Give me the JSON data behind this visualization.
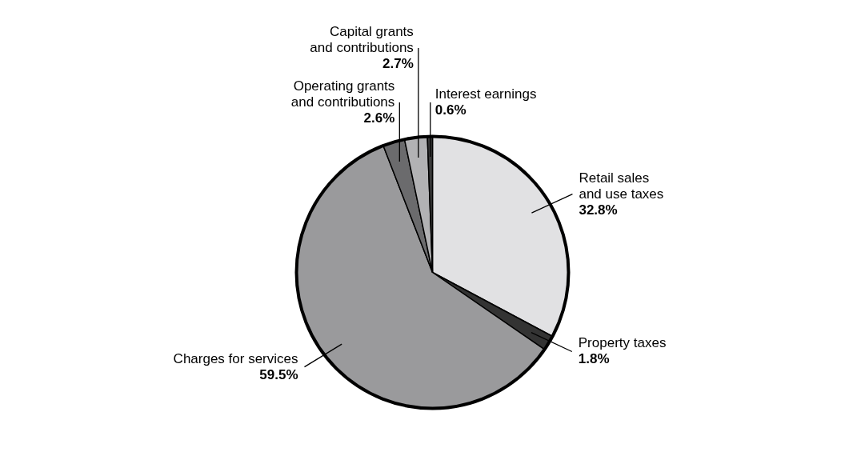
{
  "chart_data": {
    "type": "pie",
    "categories": [
      "Retail sales and use taxes",
      "Property taxes",
      "Charges for services",
      "Operating grants and contributions",
      "Capital grants and contributions",
      "Interest earnings"
    ],
    "values": [
      32.8,
      1.8,
      59.5,
      2.6,
      2.7,
      0.6
    ],
    "value_labels": [
      "32.8%",
      "1.8%",
      "59.5%",
      "2.6%",
      "2.7%",
      "0.6%"
    ],
    "colors": [
      "#e1e1e3",
      "#333333",
      "#9a9a9c",
      "#6b6b6d",
      "#b2b2b4",
      "#3a3a3a"
    ]
  }
}
